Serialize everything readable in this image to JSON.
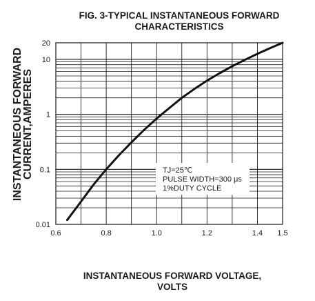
{
  "chart_data": {
    "type": "line",
    "title_line1": "FIG. 3-TYPICAL INSTANTANEOUS FORWARD",
    "title_line2": "CHARACTERISTICS",
    "xlabel_line1": "INSTANTANEOUS FORWARD VOLTAGE,",
    "xlabel_line2": "VOLTS",
    "ylabel_line1": "INSTANTANEOUS FORWARD",
    "ylabel_line2": "CURRENT,AMPERES",
    "xscale": "linear",
    "yscale": "log",
    "xlim": [
      0.6,
      1.5
    ],
    "ylim": [
      0.01,
      20
    ],
    "grid": true,
    "x_ticks": [
      {
        "value": 0.6,
        "label": "0.6"
      },
      {
        "value": 0.8,
        "label": "0.8"
      },
      {
        "value": 1.0,
        "label": "1.0"
      },
      {
        "value": 1.2,
        "label": "1.2"
      },
      {
        "value": 1.4,
        "label": "1.4"
      },
      {
        "value": 1.5,
        "label": "1.5"
      }
    ],
    "y_ticks": [
      {
        "value": 0.01,
        "label": "0.01"
      },
      {
        "value": 0.1,
        "label": "0.1"
      },
      {
        "value": 1,
        "label": "1"
      },
      {
        "value": 10,
        "label": "10"
      },
      {
        "value": 20,
        "label": "20"
      }
    ],
    "annotation": {
      "line1": "TJ=25℃",
      "line2": "PULSE WIDTH=300 μs",
      "line3": "1%DUTY CYCLE"
    },
    "series": [
      {
        "x": [
          0.645,
          0.7,
          0.75,
          0.8,
          0.85,
          0.9,
          0.95,
          1.0,
          1.05,
          1.1,
          1.15,
          1.2,
          1.25,
          1.3,
          1.35,
          1.4,
          1.45,
          1.5
        ],
        "y": [
          0.012,
          0.026,
          0.053,
          0.1,
          0.18,
          0.31,
          0.52,
          0.84,
          1.3,
          2.0,
          2.9,
          4.1,
          5.6,
          7.5,
          9.8,
          12.6,
          16.0,
          20.0
        ]
      }
    ]
  }
}
